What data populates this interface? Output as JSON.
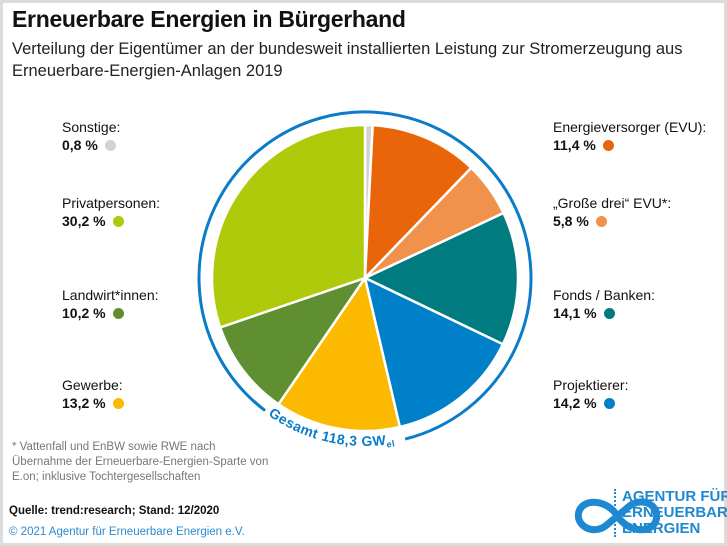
{
  "title": "Erneuerbare Energien in Bürgerhand",
  "subtitle": "Verteilung der Eigentümer an der bundesweit installierten Leistung zur Stromerzeugung aus Erneuerbare-Energien-Anlagen 2019",
  "chart_data": {
    "type": "pie",
    "total_label": "Gesamt 118,3 GW",
    "total_unit_sub": "el",
    "slices": [
      {
        "name": "Sonstige:",
        "value": 0.8,
        "label": "0,8 %",
        "color": "#d3d3d3"
      },
      {
        "name": "Energieversorger (EVU):",
        "value": 11.4,
        "label": "11,4 %",
        "color": "#e8650a"
      },
      {
        "name": "„Große drei“ EVU*:",
        "value": 5.8,
        "label": "5,8 %",
        "color": "#f0914c"
      },
      {
        "name": "Fonds / Banken:",
        "value": 14.1,
        "label": "14,1 %",
        "color": "#007c80"
      },
      {
        "name": "Projektierer:",
        "value": 14.2,
        "label": "14,2 %",
        "color": "#0080c8"
      },
      {
        "name": "Gewerbe:",
        "value": 13.2,
        "label": "13,2 %",
        "color": "#fbba00"
      },
      {
        "name": "Landwirt*innen:",
        "value": 10.2,
        "label": "10,2 %",
        "color": "#5f8f30"
      },
      {
        "name": "Privatpersonen:",
        "value": 30.2,
        "label": "30,2 %",
        "color": "#afca0b"
      }
    ],
    "ring_color": "#0a7cc8"
  },
  "footnote": "* Vattenfall und EnBW sowie RWE nach Übernahme der Erneuerbare-Energien-Sparte von E.on; inklusive Tochtergesellschaften",
  "source": "Quelle: trend:research; Stand: 12/2020",
  "copyright": "© 2021 Agentur für Erneuerbare Energien e.V.",
  "logo": {
    "line1": "AGENTUR FÜR",
    "line2": "ERNEUERBARE",
    "line3": "ENERGIEN",
    "icon": "infinity-icon"
  }
}
